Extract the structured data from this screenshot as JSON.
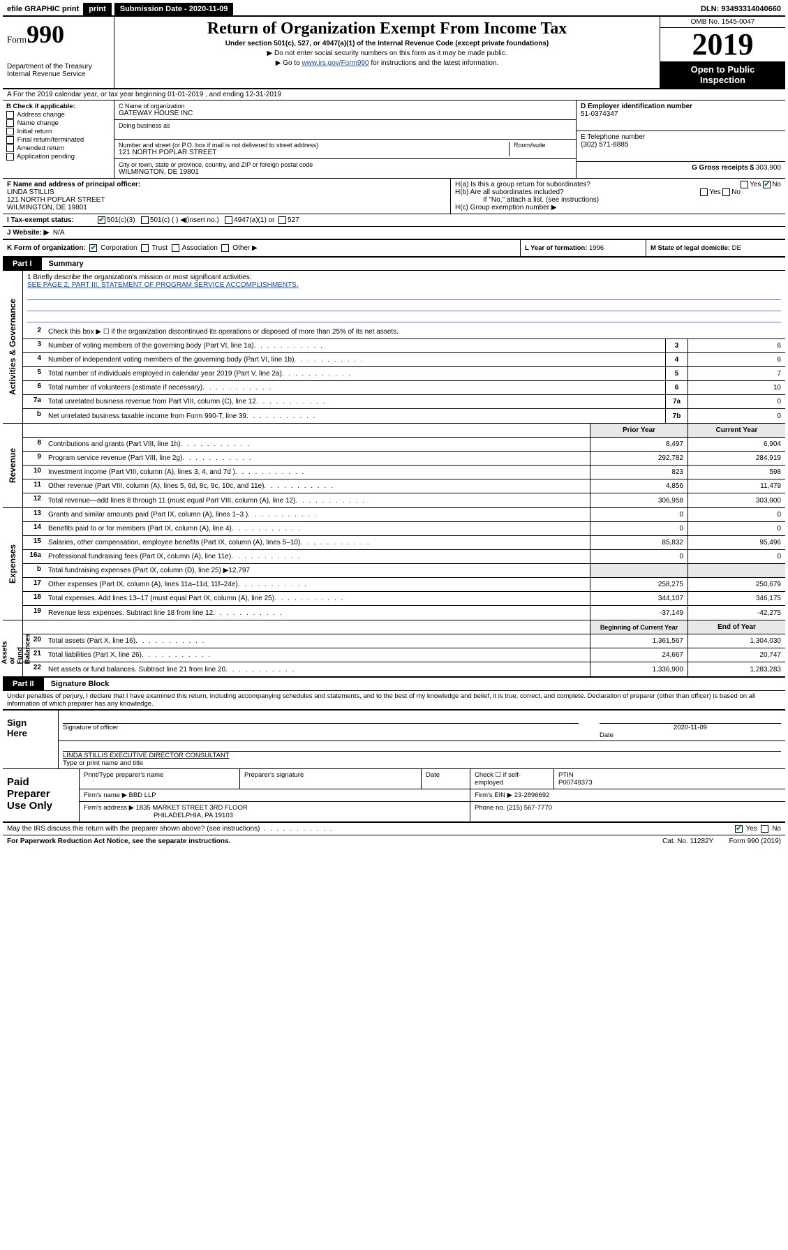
{
  "topbar": {
    "efile": "efile GRAPHIC print",
    "submission": "Submission Date - 2020-11-09",
    "dln": "DLN: 93493314040660"
  },
  "header": {
    "form_label": "Form",
    "form_num": "990",
    "dept": "Department of the Treasury\nInternal Revenue Service",
    "title": "Return of Organization Exempt From Income Tax",
    "sub1": "Under section 501(c), 527, or 4947(a)(1) of the Internal Revenue Code (except private foundations)",
    "sub2": "▶ Do not enter social security numbers on this form as it may be made public.",
    "sub3_pre": "▶ Go to ",
    "sub3_link": "www.irs.gov/Form990",
    "sub3_post": " for instructions and the latest information.",
    "omb": "OMB No. 1545-0047",
    "year": "2019",
    "openpub": "Open to Public\nInspection"
  },
  "rowA": "A For the 2019 calendar year, or tax year beginning 01-01-2019    , and ending 12-31-2019",
  "B": {
    "label": "B Check if applicable:",
    "items": [
      "Address change",
      "Name change",
      "Initial return",
      "Final return/terminated",
      "Amended return",
      "Application pending"
    ]
  },
  "C": {
    "name_label": "C Name of organization",
    "name": "GATEWAY HOUSE INC",
    "dba_label": "Doing business as",
    "addr_label": "Number and street (or P.O. box if mail is not delivered to street address)",
    "room_label": "Room/suite",
    "addr": "121 NORTH POPLAR STREET",
    "city_label": "City or town, state or province, country, and ZIP or foreign postal code",
    "city": "WILMINGTON, DE  19801"
  },
  "D": {
    "label": "D Employer identification number",
    "val": "51-0374347"
  },
  "E": {
    "label": "E Telephone number",
    "val": "(302) 571-8885"
  },
  "G": {
    "label": "G Gross receipts $",
    "val": "303,900"
  },
  "F": {
    "label": "F  Name and address of principal officer:",
    "name": "LINDA STILLIS",
    "addr1": "121 NORTH POPLAR STREET",
    "addr2": "WILMINGTON, DE  19801"
  },
  "H": {
    "a": "H(a)  Is this a group return for subordinates?",
    "a_yes": "Yes",
    "a_no": "No",
    "b": "H(b)  Are all subordinates included?",
    "b_yes": "Yes",
    "b_no": "No",
    "b_note": "If \"No,\" attach a list. (see instructions)",
    "c": "H(c)  Group exemption number ▶"
  },
  "I": {
    "label": "I   Tax-exempt status:",
    "opts": [
      "501(c)(3)",
      "501(c) (  ) ◀(insert no.)",
      "4947(a)(1) or",
      "527"
    ]
  },
  "J": {
    "label": "J   Website: ▶",
    "val": "N/A"
  },
  "K": {
    "label": "K Form of organization:",
    "opts": [
      "Corporation",
      "Trust",
      "Association",
      "Other ▶"
    ]
  },
  "L": {
    "label": "L Year of formation:",
    "val": "1996"
  },
  "M": {
    "label": "M State of legal domicile:",
    "val": "DE"
  },
  "part1": {
    "tag": "Part I",
    "title": "Summary"
  },
  "briefly": {
    "q": "1   Briefly describe the organization's mission or most significant activities:",
    "a": "SEE PAGE 2, PART III, STATEMENT OF PROGRAM SERVICE ACCOMPLISHMENTS."
  },
  "gov_lines": [
    {
      "n": "2",
      "d": "Check this box ▶ ☐  if the organization discontinued its operations or disposed of more than 25% of its net assets."
    },
    {
      "n": "3",
      "d": "Number of voting members of the governing body (Part VI, line 1a)",
      "box": "3",
      "v": "6"
    },
    {
      "n": "4",
      "d": "Number of independent voting members of the governing body (Part VI, line 1b)",
      "box": "4",
      "v": "6"
    },
    {
      "n": "5",
      "d": "Total number of individuals employed in calendar year 2019 (Part V, line 2a)",
      "box": "5",
      "v": "7"
    },
    {
      "n": "6",
      "d": "Total number of volunteers (estimate if necessary)",
      "box": "6",
      "v": "10"
    },
    {
      "n": "7a",
      "d": "Total unrelated business revenue from Part VIII, column (C), line 12",
      "box": "7a",
      "v": "0"
    },
    {
      "n": "b",
      "d": "Net unrelated business taxable income from Form 990-T, line 39",
      "box": "7b",
      "v": "0"
    }
  ],
  "col_hdr": {
    "prior": "Prior Year",
    "current": "Current Year"
  },
  "rev_lines": [
    {
      "n": "8",
      "d": "Contributions and grants (Part VIII, line 1h)",
      "p": "8,497",
      "c": "6,904"
    },
    {
      "n": "9",
      "d": "Program service revenue (Part VIII, line 2g)",
      "p": "292,782",
      "c": "284,919"
    },
    {
      "n": "10",
      "d": "Investment income (Part VIII, column (A), lines 3, 4, and 7d )",
      "p": "823",
      "c": "598"
    },
    {
      "n": "11",
      "d": "Other revenue (Part VIII, column (A), lines 5, 6d, 8c, 9c, 10c, and 11e)",
      "p": "4,856",
      "c": "11,479"
    },
    {
      "n": "12",
      "d": "Total revenue—add lines 8 through 11 (must equal Part VIII, column (A), line 12)",
      "p": "306,958",
      "c": "303,900"
    }
  ],
  "exp_lines": [
    {
      "n": "13",
      "d": "Grants and similar amounts paid (Part IX, column (A), lines 1–3 )",
      "p": "0",
      "c": "0"
    },
    {
      "n": "14",
      "d": "Benefits paid to or for members (Part IX, column (A), line 4)",
      "p": "0",
      "c": "0"
    },
    {
      "n": "15",
      "d": "Salaries, other compensation, employee benefits (Part IX, column (A), lines 5–10)",
      "p": "85,832",
      "c": "95,496"
    },
    {
      "n": "16a",
      "d": "Professional fundraising fees (Part IX, column (A), line 11e)",
      "p": "0",
      "c": "0"
    },
    {
      "n": "b",
      "d": "Total fundraising expenses (Part IX, column (D), line 25) ▶12,797",
      "p": "",
      "c": "",
      "shade": true
    },
    {
      "n": "17",
      "d": "Other expenses (Part IX, column (A), lines 11a–11d, 11f–24e)",
      "p": "258,275",
      "c": "250,679"
    },
    {
      "n": "18",
      "d": "Total expenses. Add lines 13–17 (must equal Part IX, column (A), line 25)",
      "p": "344,107",
      "c": "346,175"
    },
    {
      "n": "19",
      "d": "Revenue less expenses. Subtract line 18 from line 12",
      "p": "-37,149",
      "c": "-42,275"
    }
  ],
  "na_hdr": {
    "beg": "Beginning of Current Year",
    "end": "End of Year"
  },
  "na_lines": [
    {
      "n": "20",
      "d": "Total assets (Part X, line 16)",
      "p": "1,361,567",
      "c": "1,304,030"
    },
    {
      "n": "21",
      "d": "Total liabilities (Part X, line 26)",
      "p": "24,667",
      "c": "20,747"
    },
    {
      "n": "22",
      "d": "Net assets or fund balances. Subtract line 21 from line 20",
      "p": "1,336,900",
      "c": "1,283,283"
    }
  ],
  "part2": {
    "tag": "Part II",
    "title": "Signature Block"
  },
  "perjury": "Under penalties of perjury, I declare that I have examined this return, including accompanying schedules and statements, and to the best of my knowledge and belief, it is true, correct, and complete. Declaration of preparer (other than officer) is based on all information of which preparer has any knowledge.",
  "sign": {
    "here": "Sign\nHere",
    "sig_label": "Signature of officer",
    "date_label": "Date",
    "date": "2020-11-09",
    "name": "LINDA STILLIS  EXECUTIVE DIRECTOR CONSULTANT",
    "name_label": "Type or print name and title"
  },
  "paid": {
    "label": "Paid\nPreparer\nUse Only",
    "h1": "Print/Type preparer's name",
    "h2": "Preparer's signature",
    "h3": "Date",
    "h4": "Check ☐ if self-employed",
    "h5": "PTIN",
    "ptin": "P00749373",
    "firm_name_l": "Firm's name    ▶",
    "firm_name": "BBD LLP",
    "firm_ein_l": "Firm's EIN ▶",
    "firm_ein": "23-2896692",
    "firm_addr_l": "Firm's address ▶",
    "firm_addr1": "1835 MARKET STREET 3RD FLOOR",
    "firm_addr2": "PHILADELPHIA, PA  19103",
    "phone_l": "Phone no.",
    "phone": "(215) 567-7770"
  },
  "discuss": {
    "q": "May the IRS discuss this return with the preparer shown above? (see instructions)",
    "yes": "Yes",
    "no": "No"
  },
  "footer": {
    "pra": "For Paperwork Reduction Act Notice, see the separate instructions.",
    "cat": "Cat. No. 11282Y",
    "form": "Form 990 (2019)"
  },
  "side_labels": {
    "gov": "Activities & Governance",
    "rev": "Revenue",
    "exp": "Expenses",
    "na": "Net Assets or\nFund Balances"
  },
  "colors": {
    "link": "#1a4ba8",
    "check": "#1a7a3a",
    "shade": "#e8e8e8"
  }
}
